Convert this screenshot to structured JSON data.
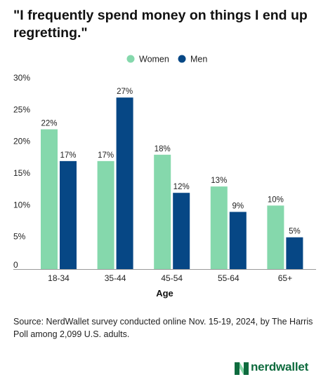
{
  "title": "\"I frequently spend money on things I end up regretting.\"",
  "source": "Source: NerdWallet survey conducted online Nov. 15-19, 2024, by The Harris Poll among 2,099 U.S. adults.",
  "brand": "nerdwallet",
  "colors": {
    "women": "#85d8ac",
    "men": "#064785",
    "logo": "#0e6b3e"
  },
  "chart_data": {
    "type": "bar",
    "categories": [
      "18-34",
      "35-44",
      "45-54",
      "55-64",
      "65+"
    ],
    "series": [
      {
        "name": "Women",
        "values": [
          22,
          17,
          18,
          13,
          10
        ],
        "labels": [
          "22%",
          "17%",
          "18%",
          "13%",
          "10%"
        ]
      },
      {
        "name": "Men",
        "values": [
          17,
          27,
          12,
          9,
          5
        ],
        "labels": [
          "17%",
          "27%",
          "12%",
          "9%",
          "5%"
        ]
      }
    ],
    "xlabel": "Age",
    "ylabel": "",
    "ylim": [
      0,
      30
    ],
    "yticks": [
      0,
      5,
      10,
      15,
      20,
      25,
      30
    ],
    "ytick_labels": [
      "0",
      "5%",
      "10%",
      "15%",
      "20%",
      "25%",
      "30%"
    ],
    "legend_position": "top-center",
    "grid": false
  }
}
